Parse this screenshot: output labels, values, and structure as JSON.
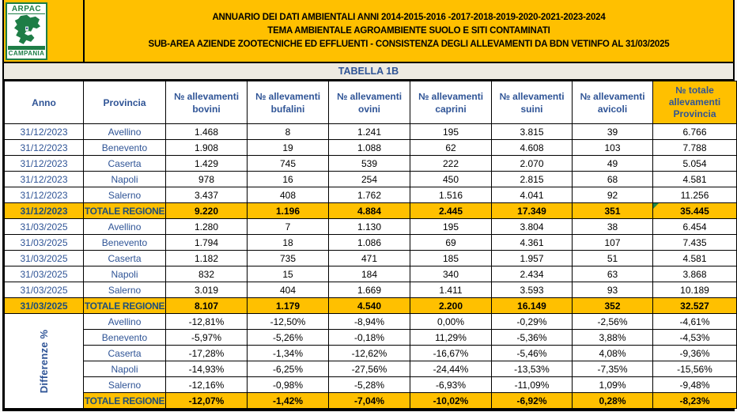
{
  "logo": {
    "arpac": "ARPAC",
    "campania": "CAMPANIA"
  },
  "header": {
    "title_lines": [
      "ANNUARIO DEI DATI AMBIENTALI ANNI 2014-2015-2016 -2017-2018-2019-2020-2021-2023-2024",
      "TEMA AMBIENTALE AGROAMBIENTE SUOLO E SITI CONTAMINATI",
      "SUB-AREA AZIENDE ZOOTECNICHE ED EFFLUENTI - CONSISTENZA DEGLI ALLEVAMENTI DA BDN VETINFO AL 31/03/2025"
    ]
  },
  "colors": {
    "accent_orange": "#FFC000",
    "header_blue": "#2F5496",
    "total_label_blue": "#1F4E79",
    "logo_green": "#1E7D46",
    "caption_bg": "#EDEAE2",
    "flag_green": "#1E8A4C"
  },
  "table": {
    "caption": "TABELLA 1B",
    "columns": [
      {
        "lines": [
          "Anno"
        ],
        "highlight": false
      },
      {
        "lines": [
          "Provincia"
        ],
        "highlight": false
      },
      {
        "lines": [
          "№ allevamenti",
          "bovini"
        ],
        "highlight": false
      },
      {
        "lines": [
          "№ allevamenti",
          "bufalini"
        ],
        "highlight": false
      },
      {
        "lines": [
          "№ allevamenti",
          "ovini"
        ],
        "highlight": false
      },
      {
        "lines": [
          "№ allevamenti",
          "caprini"
        ],
        "highlight": false
      },
      {
        "lines": [
          "№ allevamenti",
          "suini"
        ],
        "highlight": false
      },
      {
        "lines": [
          "№ allevamenti",
          "avicoli"
        ],
        "highlight": false
      },
      {
        "lines": [
          "№ totale",
          "allevamenti",
          "Provincia"
        ],
        "highlight": true
      }
    ],
    "sections": [
      {
        "rows": [
          {
            "anno": "31/12/2023",
            "provincia": "Avellino",
            "values": [
              "1.468",
              "8",
              "1.241",
              "195",
              "3.815",
              "39",
              "6.766"
            ],
            "is_total": false
          },
          {
            "anno": "31/12/2023",
            "provincia": "Benevento",
            "values": [
              "1.908",
              "19",
              "1.088",
              "62",
              "4.608",
              "103",
              "7.788"
            ],
            "is_total": false
          },
          {
            "anno": "31/12/2023",
            "provincia": "Caserta",
            "values": [
              "1.429",
              "745",
              "539",
              "222",
              "2.070",
              "49",
              "5.054"
            ],
            "is_total": false
          },
          {
            "anno": "31/12/2023",
            "provincia": "Napoli",
            "values": [
              "978",
              "16",
              "254",
              "450",
              "2.815",
              "68",
              "4.581"
            ],
            "is_total": false
          },
          {
            "anno": "31/12/2023",
            "provincia": "Salerno",
            "values": [
              "3.437",
              "408",
              "1.762",
              "1.516",
              "4.041",
              "92",
              "11.256"
            ],
            "is_total": false
          },
          {
            "anno": "31/12/2023",
            "provincia": "TOTALE REGIONE",
            "values": [
              "9.220",
              "1.196",
              "4.884",
              "2.445",
              "17.349",
              "351",
              "35.445"
            ],
            "is_total": true,
            "green_flag": true
          }
        ]
      },
      {
        "rows": [
          {
            "anno": "31/03/2025",
            "provincia": "Avellino",
            "values": [
              "1.280",
              "7",
              "1.130",
              "195",
              "3.804",
              "38",
              "6.454"
            ],
            "is_total": false
          },
          {
            "anno": "31/03/2025",
            "provincia": "Benevento",
            "values": [
              "1.794",
              "18",
              "1.086",
              "69",
              "4.361",
              "107",
              "7.435"
            ],
            "is_total": false
          },
          {
            "anno": "31/03/2025",
            "provincia": "Caserta",
            "values": [
              "1.182",
              "735",
              "471",
              "185",
              "1.957",
              "51",
              "4.581"
            ],
            "is_total": false
          },
          {
            "anno": "31/03/2025",
            "provincia": "Napoli",
            "values": [
              "832",
              "15",
              "184",
              "340",
              "2.434",
              "63",
              "3.868"
            ],
            "is_total": false
          },
          {
            "anno": "31/03/2025",
            "provincia": "Salerno",
            "values": [
              "3.019",
              "404",
              "1.669",
              "1.411",
              "3.593",
              "93",
              "10.189"
            ],
            "is_total": false
          },
          {
            "anno": "31/03/2025",
            "provincia": "TOTALE REGIONE",
            "values": [
              "8.107",
              "1.179",
              "4.540",
              "2.200",
              "16.149",
              "352",
              "32.527"
            ],
            "is_total": true
          }
        ]
      },
      {
        "merged_label": "Differenze %",
        "rows": [
          {
            "provincia": "Avellino",
            "values": [
              "-12,81%",
              "-12,50%",
              "-8,94%",
              "0,00%",
              "-0,29%",
              "-2,56%",
              "-4,61%"
            ],
            "is_total": false
          },
          {
            "provincia": "Benevento",
            "values": [
              "-5,97%",
              "-5,26%",
              "-0,18%",
              "11,29%",
              "-5,36%",
              "3,88%",
              "-4,53%"
            ],
            "is_total": false
          },
          {
            "provincia": "Caserta",
            "values": [
              "-17,28%",
              "-1,34%",
              "-12,62%",
              "-16,67%",
              "-5,46%",
              "4,08%",
              "-9,36%"
            ],
            "is_total": false
          },
          {
            "provincia": "Napoli",
            "values": [
              "-14,93%",
              "-6,25%",
              "-27,56%",
              "-24,44%",
              "-13,53%",
              "-7,35%",
              "-15,56%"
            ],
            "is_total": false
          },
          {
            "provincia": "Salerno",
            "values": [
              "-12,16%",
              "-0,98%",
              "-5,28%",
              "-6,93%",
              "-11,09%",
              "1,09%",
              "-9,48%"
            ],
            "is_total": false
          },
          {
            "provincia": "TOTALE REGIONE",
            "values": [
              "-12,07%",
              "-1,42%",
              "-7,04%",
              "-10,02%",
              "-6,92%",
              "0,28%",
              "-8,23%"
            ],
            "is_total": true
          }
        ]
      }
    ]
  }
}
